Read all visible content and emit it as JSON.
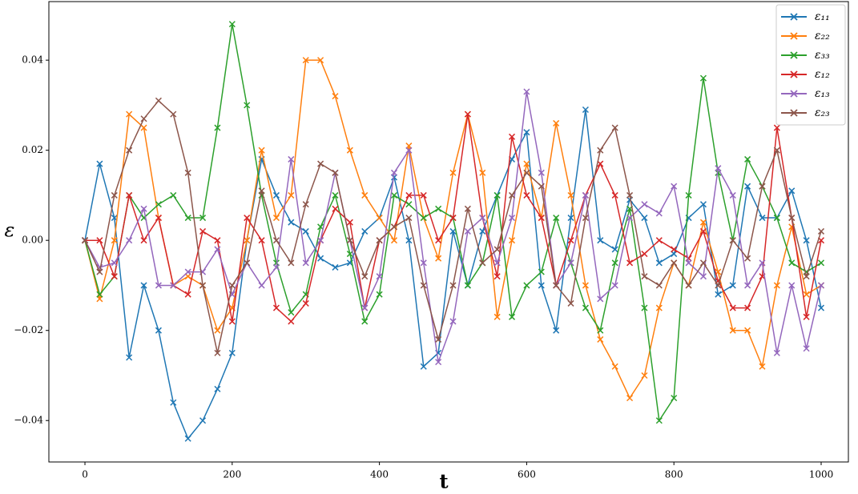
{
  "chart_data": {
    "type": "line",
    "xlabel": "t",
    "ylabel": "ε",
    "x": [
      0,
      20,
      40,
      60,
      80,
      100,
      120,
      140,
      160,
      180,
      200,
      220,
      240,
      260,
      280,
      300,
      320,
      340,
      360,
      380,
      400,
      420,
      440,
      460,
      480,
      500,
      520,
      540,
      560,
      580,
      600,
      620,
      640,
      660,
      680,
      700,
      720,
      740,
      760,
      780,
      800,
      820,
      840,
      860,
      880,
      900,
      920,
      940,
      960,
      980,
      1000
    ],
    "xlim": [
      -49,
      1037
    ],
    "ylim": [
      -0.0492,
      0.053
    ],
    "xticks": [
      0,
      200,
      400,
      600,
      800,
      1000
    ],
    "yticks": [
      {
        "value": -0.04,
        "label": "−0.04"
      },
      {
        "value": -0.02,
        "label": "−0.02"
      },
      {
        "value": 0,
        "label": "0.00"
      },
      0.02,
      0.04
    ],
    "legend": "upper right",
    "series": [
      {
        "name": "ε₁₁",
        "color": "#1f77b4",
        "values": [
          0,
          0.017,
          0.005,
          -0.026,
          -0.01,
          -0.02,
          -0.036,
          -0.044,
          -0.04,
          -0.033,
          -0.025,
          0,
          0.018,
          0.01,
          0.004,
          0.002,
          -0.004,
          -0.006,
          -0.005,
          0.002,
          0.005,
          0.014,
          0,
          -0.028,
          -0.025,
          0.002,
          -0.01,
          0.002,
          0.01,
          0.018,
          0.024,
          -0.01,
          -0.02,
          0.005,
          0.029,
          0,
          -0.002,
          0.009,
          0.005,
          -0.005,
          -0.003,
          0.005,
          0.008,
          -0.012,
          -0.01,
          0.012,
          0.005,
          0.005,
          0.011,
          0,
          -0.015
        ]
      },
      {
        "name": "ε₂₂",
        "color": "#ff7f0e",
        "values": [
          0,
          -0.013,
          0,
          0.028,
          0.025,
          0.005,
          -0.01,
          -0.008,
          -0.01,
          -0.02,
          -0.015,
          0,
          0.02,
          0.005,
          0.01,
          0.04,
          0.04,
          0.032,
          0.02,
          0.01,
          0.005,
          0,
          0.021,
          0.005,
          -0.004,
          0.015,
          0.028,
          0.015,
          -0.017,
          0,
          0.017,
          0.005,
          0.026,
          0.01,
          -0.01,
          -0.022,
          -0.028,
          -0.035,
          -0.03,
          -0.015,
          -0.005,
          -0.01,
          0.004,
          -0.007,
          -0.02,
          -0.02,
          -0.028,
          -0.01,
          0.003,
          -0.012,
          -0.01
        ]
      },
      {
        "name": "ε₃₃",
        "color": "#2ca02c",
        "values": [
          0,
          -0.012,
          -0.008,
          0.01,
          0.005,
          0.008,
          0.01,
          0.005,
          0.005,
          0.025,
          0.048,
          0.03,
          0.01,
          -0.005,
          -0.016,
          -0.012,
          0.003,
          0.01,
          -0.003,
          -0.018,
          -0.012,
          0.01,
          0.008,
          0.005,
          0.007,
          0.005,
          -0.01,
          -0.005,
          0.01,
          -0.017,
          -0.01,
          -0.007,
          0.005,
          -0.005,
          -0.015,
          -0.02,
          -0.005,
          0.007,
          -0.015,
          -0.04,
          -0.035,
          0.01,
          0.036,
          0.015,
          0,
          0.018,
          0.012,
          0.005,
          -0.005,
          -0.007,
          -0.005
        ]
      },
      {
        "name": "ε₁₂",
        "color": "#d62728",
        "values": [
          0,
          0,
          -0.008,
          0.01,
          0,
          0.005,
          -0.01,
          -0.012,
          0.002,
          0,
          -0.018,
          0.005,
          0,
          -0.015,
          -0.018,
          -0.014,
          0,
          0.007,
          0.004,
          -0.015,
          0,
          0.003,
          0.01,
          0.01,
          0,
          0.005,
          0.028,
          0.005,
          -0.008,
          0.023,
          0.01,
          0.005,
          -0.01,
          0,
          0.01,
          0.017,
          0.01,
          -0.005,
          -0.003,
          0,
          -0.002,
          -0.004,
          0.002,
          -0.009,
          -0.015,
          -0.015,
          -0.008,
          0.025,
          0.005,
          -0.017,
          0
        ]
      },
      {
        "name": "ε₁₃",
        "color": "#9467bd",
        "values": [
          0,
          -0.006,
          -0.005,
          0,
          0.007,
          -0.01,
          -0.01,
          -0.007,
          -0.007,
          -0.002,
          -0.012,
          -0.005,
          -0.01,
          -0.006,
          0.018,
          -0.005,
          0,
          0.015,
          0,
          -0.015,
          -0.008,
          0.015,
          0.02,
          -0.005,
          -0.027,
          -0.018,
          0.002,
          0.005,
          -0.005,
          0.005,
          0.033,
          0.015,
          -0.01,
          -0.005,
          0.01,
          -0.013,
          -0.01,
          0.005,
          0.008,
          0.006,
          0.012,
          -0.005,
          -0.008,
          0.016,
          0.01,
          -0.01,
          -0.005,
          -0.025,
          -0.01,
          -0.024,
          -0.01
        ]
      },
      {
        "name": "ε₂₃",
        "color": "#8c564b",
        "values": [
          0,
          -0.007,
          0.01,
          0.02,
          0.027,
          0.031,
          0.028,
          0.015,
          -0.01,
          -0.025,
          -0.01,
          -0.005,
          0.011,
          0,
          -0.005,
          0.008,
          0.017,
          0.015,
          0,
          -0.008,
          0,
          0.003,
          0.005,
          -0.01,
          -0.022,
          -0.01,
          0.007,
          -0.005,
          -0.002,
          0.01,
          0.015,
          0.012,
          -0.01,
          -0.014,
          0.005,
          0.02,
          0.025,
          0.01,
          -0.008,
          -0.01,
          -0.005,
          -0.01,
          -0.005,
          -0.01,
          0,
          -0.004,
          0.012,
          0.02,
          0.005,
          -0.008,
          0.002
        ]
      }
    ]
  }
}
